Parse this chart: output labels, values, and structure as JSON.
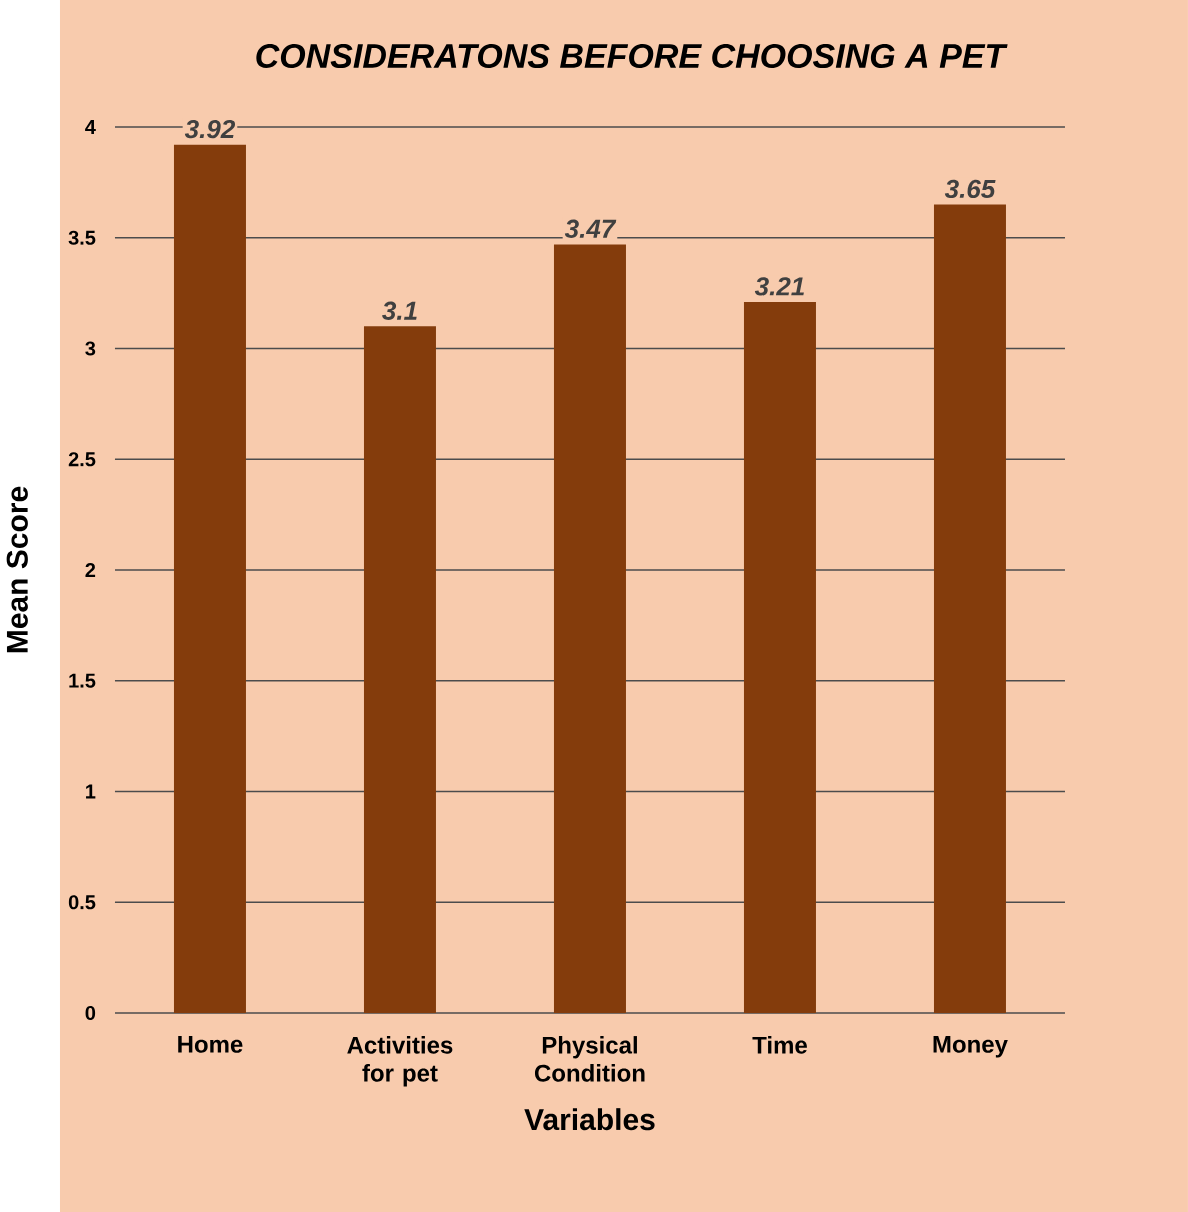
{
  "chart_data": {
    "type": "bar",
    "title": "CONSIDERATONS BEFORE CHOOSING A PET",
    "xlabel": "Variables",
    "ylabel": "Mean Score",
    "categories": [
      "Home",
      "Activities for pet",
      "Physical Condition",
      "Time",
      "Money"
    ],
    "values": [
      3.92,
      3.1,
      3.47,
      3.21,
      3.65
    ],
    "color": "#843c0c",
    "ylim": [
      0,
      4
    ],
    "yticks": [
      0,
      0.5,
      1,
      1.5,
      2,
      2.5,
      3,
      3.5,
      4
    ],
    "grid": "y",
    "data_labels": true
  }
}
